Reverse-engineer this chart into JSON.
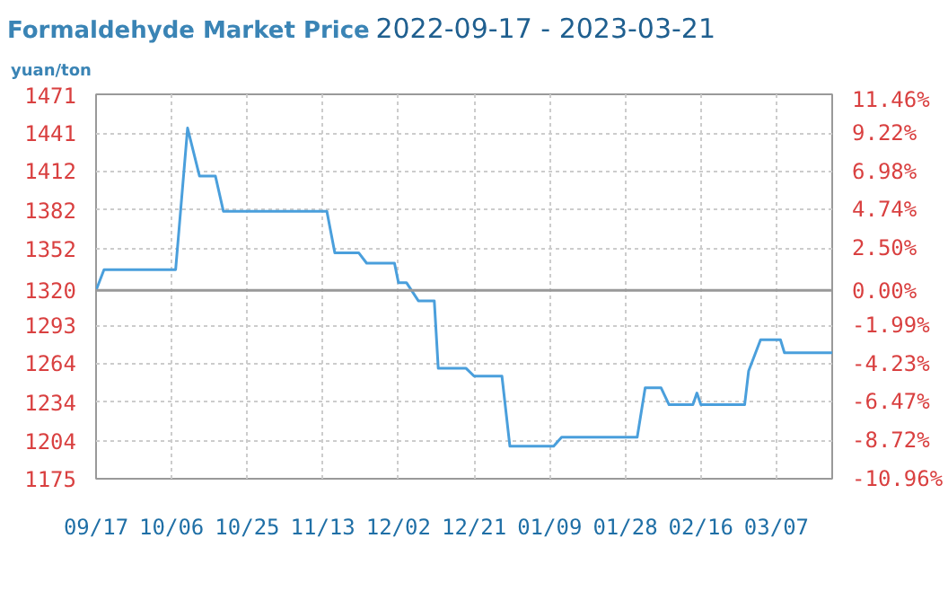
{
  "chart_data": {
    "type": "line",
    "title": "Formaldehyde Market Price",
    "subtitle": "2022-09-17 - 2023-03-21",
    "ylabel": "yuan/ton",
    "x": [
      "2022-09-17",
      "2022-09-19",
      "2022-10-07",
      "2022-10-10",
      "2022-10-13",
      "2022-10-17",
      "2022-10-19",
      "2022-11-14",
      "2022-11-16",
      "2022-11-22",
      "2022-11-24",
      "2022-12-01",
      "2022-12-02",
      "2022-12-04",
      "2022-12-07",
      "2022-12-11",
      "2022-12-12",
      "2022-12-19",
      "2022-12-21",
      "2022-12-28",
      "2022-12-30",
      "2023-01-10",
      "2023-01-12",
      "2023-01-31",
      "2023-02-02",
      "2023-02-06",
      "2023-02-08",
      "2023-02-14",
      "2023-02-15",
      "2023-02-16",
      "2023-02-27",
      "2023-02-28",
      "2023-03-03",
      "2023-03-08",
      "2023-03-09",
      "2023-03-21"
    ],
    "series": [
      {
        "color": "#4a9fdc",
        "values": [
          1320,
          1336,
          1336,
          1445,
          1408,
          1408,
          1381,
          1381,
          1349,
          1349,
          1341,
          1341,
          1326,
          1326,
          1312,
          1312,
          1260,
          1260,
          1254,
          1254,
          1200,
          1200,
          1207,
          1207,
          1245,
          1245,
          1232,
          1232,
          1241,
          1232,
          1232,
          1258,
          1282,
          1282,
          1272,
          1272
        ]
      }
    ],
    "xlim": [
      "2022-09-17",
      "2023-03-21"
    ],
    "xticks": [
      {
        "value": "2022-09-17",
        "label": "09/17"
      },
      {
        "value": "2022-10-06",
        "label": "10/06"
      },
      {
        "value": "2022-10-25",
        "label": "10/25"
      },
      {
        "value": "2022-11-13",
        "label": "11/13"
      },
      {
        "value": "2022-12-02",
        "label": "12/02"
      },
      {
        "value": "2022-12-21",
        "label": "12/21"
      },
      {
        "value": "2023-01-09",
        "label": "01/09"
      },
      {
        "value": "2023-01-28",
        "label": "01/28"
      },
      {
        "value": "2023-02-16",
        "label": "02/16"
      },
      {
        "value": "2023-03-07",
        "label": "03/07"
      }
    ],
    "ylim": [
      1175,
      1471
    ],
    "yticks": [
      1175,
      1204,
      1234,
      1264,
      1293,
      1320,
      1352,
      1382,
      1412,
      1441,
      1471
    ],
    "y2lim": [
      -10.96,
      11.46
    ],
    "y2ticks": [
      {
        "value": -10.96,
        "label": "-10.96%"
      },
      {
        "value": -8.72,
        "label": "-8.72%"
      },
      {
        "value": -6.47,
        "label": "-6.47%"
      },
      {
        "value": -4.23,
        "label": "-4.23%"
      },
      {
        "value": -1.99,
        "label": "-1.99%"
      },
      {
        "value": 0,
        "label": "0.00%"
      },
      {
        "value": 2.5,
        "label": "2.50%"
      },
      {
        "value": 4.74,
        "label": "4.74%"
      },
      {
        "value": 6.98,
        "label": "6.98%"
      },
      {
        "value": 9.22,
        "label": "9.22%"
      },
      {
        "value": 11.46,
        "label": "11.46%"
      }
    ],
    "ref_lines": [
      {
        "axis": "y",
        "value": 1320,
        "color": "#999999",
        "line_style": "solid"
      }
    ],
    "grid": true,
    "marker": "none",
    "line_style": "solid"
  }
}
